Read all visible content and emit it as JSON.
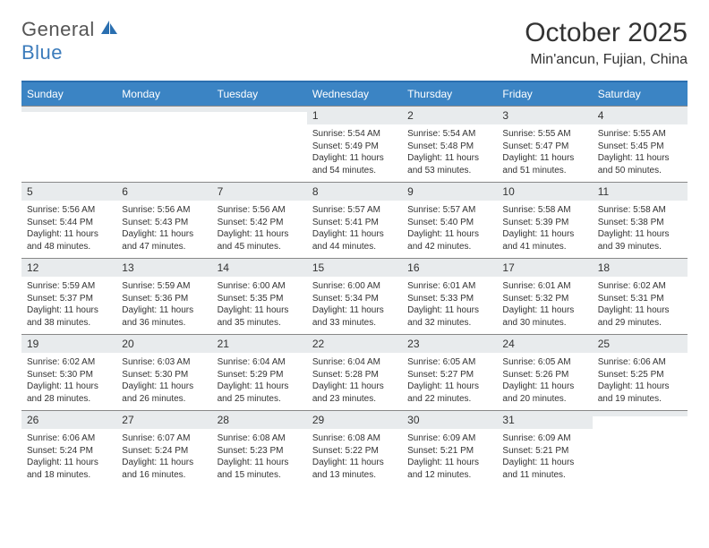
{
  "logo": {
    "text1": "General",
    "text2": "Blue"
  },
  "title": {
    "month": "October 2025",
    "location": "Min'ancun, Fujian, China"
  },
  "colors": {
    "headerBg": "#3b84c4",
    "headerText": "#ffffff",
    "daynumBg": "#e8ebed",
    "border": "#2a6fb0",
    "rowBorder": "#888888"
  },
  "daysOfWeek": [
    "Sunday",
    "Monday",
    "Tuesday",
    "Wednesday",
    "Thursday",
    "Friday",
    "Saturday"
  ],
  "weeks": [
    [
      {
        "n": "",
        "sr": "",
        "ss": "",
        "dl": ""
      },
      {
        "n": "",
        "sr": "",
        "ss": "",
        "dl": ""
      },
      {
        "n": "",
        "sr": "",
        "ss": "",
        "dl": ""
      },
      {
        "n": "1",
        "sr": "Sunrise: 5:54 AM",
        "ss": "Sunset: 5:49 PM",
        "dl": "Daylight: 11 hours and 54 minutes."
      },
      {
        "n": "2",
        "sr": "Sunrise: 5:54 AM",
        "ss": "Sunset: 5:48 PM",
        "dl": "Daylight: 11 hours and 53 minutes."
      },
      {
        "n": "3",
        "sr": "Sunrise: 5:55 AM",
        "ss": "Sunset: 5:47 PM",
        "dl": "Daylight: 11 hours and 51 minutes."
      },
      {
        "n": "4",
        "sr": "Sunrise: 5:55 AM",
        "ss": "Sunset: 5:45 PM",
        "dl": "Daylight: 11 hours and 50 minutes."
      }
    ],
    [
      {
        "n": "5",
        "sr": "Sunrise: 5:56 AM",
        "ss": "Sunset: 5:44 PM",
        "dl": "Daylight: 11 hours and 48 minutes."
      },
      {
        "n": "6",
        "sr": "Sunrise: 5:56 AM",
        "ss": "Sunset: 5:43 PM",
        "dl": "Daylight: 11 hours and 47 minutes."
      },
      {
        "n": "7",
        "sr": "Sunrise: 5:56 AM",
        "ss": "Sunset: 5:42 PM",
        "dl": "Daylight: 11 hours and 45 minutes."
      },
      {
        "n": "8",
        "sr": "Sunrise: 5:57 AM",
        "ss": "Sunset: 5:41 PM",
        "dl": "Daylight: 11 hours and 44 minutes."
      },
      {
        "n": "9",
        "sr": "Sunrise: 5:57 AM",
        "ss": "Sunset: 5:40 PM",
        "dl": "Daylight: 11 hours and 42 minutes."
      },
      {
        "n": "10",
        "sr": "Sunrise: 5:58 AM",
        "ss": "Sunset: 5:39 PM",
        "dl": "Daylight: 11 hours and 41 minutes."
      },
      {
        "n": "11",
        "sr": "Sunrise: 5:58 AM",
        "ss": "Sunset: 5:38 PM",
        "dl": "Daylight: 11 hours and 39 minutes."
      }
    ],
    [
      {
        "n": "12",
        "sr": "Sunrise: 5:59 AM",
        "ss": "Sunset: 5:37 PM",
        "dl": "Daylight: 11 hours and 38 minutes."
      },
      {
        "n": "13",
        "sr": "Sunrise: 5:59 AM",
        "ss": "Sunset: 5:36 PM",
        "dl": "Daylight: 11 hours and 36 minutes."
      },
      {
        "n": "14",
        "sr": "Sunrise: 6:00 AM",
        "ss": "Sunset: 5:35 PM",
        "dl": "Daylight: 11 hours and 35 minutes."
      },
      {
        "n": "15",
        "sr": "Sunrise: 6:00 AM",
        "ss": "Sunset: 5:34 PM",
        "dl": "Daylight: 11 hours and 33 minutes."
      },
      {
        "n": "16",
        "sr": "Sunrise: 6:01 AM",
        "ss": "Sunset: 5:33 PM",
        "dl": "Daylight: 11 hours and 32 minutes."
      },
      {
        "n": "17",
        "sr": "Sunrise: 6:01 AM",
        "ss": "Sunset: 5:32 PM",
        "dl": "Daylight: 11 hours and 30 minutes."
      },
      {
        "n": "18",
        "sr": "Sunrise: 6:02 AM",
        "ss": "Sunset: 5:31 PM",
        "dl": "Daylight: 11 hours and 29 minutes."
      }
    ],
    [
      {
        "n": "19",
        "sr": "Sunrise: 6:02 AM",
        "ss": "Sunset: 5:30 PM",
        "dl": "Daylight: 11 hours and 28 minutes."
      },
      {
        "n": "20",
        "sr": "Sunrise: 6:03 AM",
        "ss": "Sunset: 5:30 PM",
        "dl": "Daylight: 11 hours and 26 minutes."
      },
      {
        "n": "21",
        "sr": "Sunrise: 6:04 AM",
        "ss": "Sunset: 5:29 PM",
        "dl": "Daylight: 11 hours and 25 minutes."
      },
      {
        "n": "22",
        "sr": "Sunrise: 6:04 AM",
        "ss": "Sunset: 5:28 PM",
        "dl": "Daylight: 11 hours and 23 minutes."
      },
      {
        "n": "23",
        "sr": "Sunrise: 6:05 AM",
        "ss": "Sunset: 5:27 PM",
        "dl": "Daylight: 11 hours and 22 minutes."
      },
      {
        "n": "24",
        "sr": "Sunrise: 6:05 AM",
        "ss": "Sunset: 5:26 PM",
        "dl": "Daylight: 11 hours and 20 minutes."
      },
      {
        "n": "25",
        "sr": "Sunrise: 6:06 AM",
        "ss": "Sunset: 5:25 PM",
        "dl": "Daylight: 11 hours and 19 minutes."
      }
    ],
    [
      {
        "n": "26",
        "sr": "Sunrise: 6:06 AM",
        "ss": "Sunset: 5:24 PM",
        "dl": "Daylight: 11 hours and 18 minutes."
      },
      {
        "n": "27",
        "sr": "Sunrise: 6:07 AM",
        "ss": "Sunset: 5:24 PM",
        "dl": "Daylight: 11 hours and 16 minutes."
      },
      {
        "n": "28",
        "sr": "Sunrise: 6:08 AM",
        "ss": "Sunset: 5:23 PM",
        "dl": "Daylight: 11 hours and 15 minutes."
      },
      {
        "n": "29",
        "sr": "Sunrise: 6:08 AM",
        "ss": "Sunset: 5:22 PM",
        "dl": "Daylight: 11 hours and 13 minutes."
      },
      {
        "n": "30",
        "sr": "Sunrise: 6:09 AM",
        "ss": "Sunset: 5:21 PM",
        "dl": "Daylight: 11 hours and 12 minutes."
      },
      {
        "n": "31",
        "sr": "Sunrise: 6:09 AM",
        "ss": "Sunset: 5:21 PM",
        "dl": "Daylight: 11 hours and 11 minutes."
      },
      {
        "n": "",
        "sr": "",
        "ss": "",
        "dl": ""
      }
    ]
  ]
}
